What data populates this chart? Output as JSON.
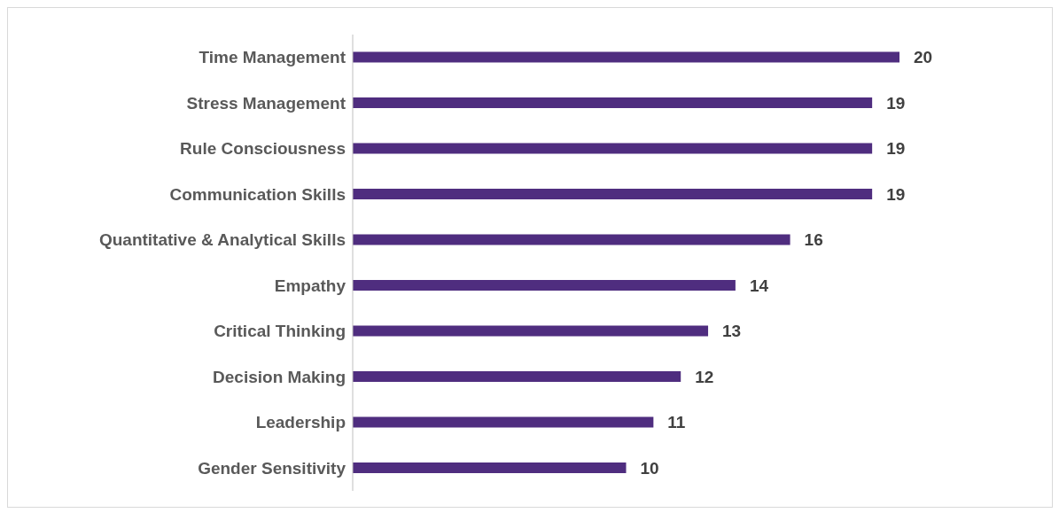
{
  "chart_data": {
    "type": "bar",
    "orientation": "horizontal",
    "categories": [
      "Time Management",
      "Stress Management",
      "Rule Consciousness",
      "Communication Skills",
      "Quantitative & Analytical Skills",
      "Empathy",
      "Critical Thinking",
      "Decision Making",
      "Leadership",
      "Gender Sensitivity"
    ],
    "values": [
      20,
      19,
      19,
      19,
      16,
      14,
      13,
      12,
      11,
      10
    ],
    "color": "#4f2d7f",
    "data_labels": true
  }
}
